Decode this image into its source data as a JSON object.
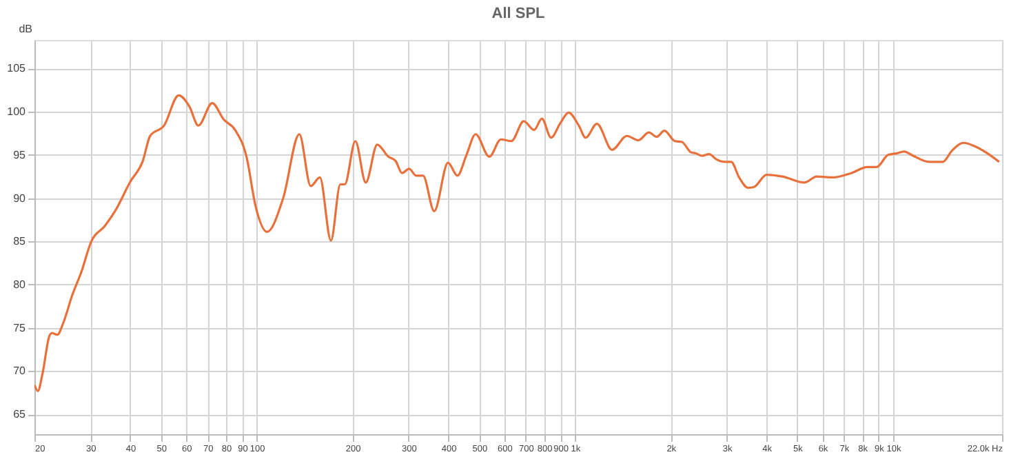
{
  "chart_data": {
    "type": "line",
    "title": "All SPL",
    "ylabel": "dB",
    "x": [
      20,
      20.5,
      21.2,
      22.3,
      22.7,
      23.6,
      24.6,
      26.3,
      28.1,
      30.1,
      33.3,
      36.1,
      40.0,
      43.8,
      46.2,
      51.1,
      56.8,
      61.4,
      65.5,
      72.4,
      78.7,
      85.4,
      92.8,
      99.2,
      107.7,
      121,
      136,
      147.7,
      157.8,
      171,
      183,
      189,
      204,
      220,
      239,
      259,
      273,
      286,
      301,
      317,
      333,
      361,
      399,
      427,
      456,
      487,
      538,
      585,
      631,
      690,
      744,
      787,
      841,
      900,
      955,
      1028,
      1080,
      1172,
      1308,
      1456,
      1582,
      1707,
      1806,
      1910,
      2061,
      2168,
      2317,
      2392,
      2513,
      2642,
      2780,
      2968,
      3097,
      3280,
      3500,
      3656,
      4000,
      4488,
      5260,
      5755,
      6470,
      7380,
      8300,
      8870,
      9640,
      10290,
      10820,
      11560,
      12980,
      14330,
      15310,
      16640,
      18070,
      19950,
      21540
    ],
    "series": [
      {
        "color": "#e8703a",
        "values": [
          68.4,
          67.7,
          69.7,
          74.1,
          74.4,
          74.2,
          75.5,
          78.8,
          81.5,
          84.9,
          86.8,
          88.7,
          91.9,
          94.3,
          97.2,
          98.4,
          101.9,
          100.6,
          98.4,
          101.0,
          99.1,
          97.9,
          94.8,
          89.0,
          86.1,
          90.0,
          97.4,
          91.4,
          92.4,
          85.1,
          91.6,
          91.6,
          96.6,
          91.8,
          96.2,
          94.8,
          94.3,
          92.9,
          93.4,
          92.6,
          92.6,
          88.5,
          94.1,
          92.6,
          95.0,
          97.4,
          94.8,
          96.8,
          96.6,
          98.9,
          97.9,
          99.2,
          97.0,
          98.7,
          99.9,
          98.4,
          97.0,
          98.6,
          95.6,
          97.2,
          96.7,
          97.6,
          97.1,
          97.8,
          96.6,
          96.5,
          95.3,
          95.2,
          94.9,
          95.1,
          94.5,
          94.2,
          94.2,
          92.4,
          91.2,
          91.3,
          92.7,
          92.5,
          91.8,
          92.5,
          92.4,
          92.9,
          93.6,
          93.6,
          95.0,
          95.2,
          95.4,
          94.9,
          94.2,
          94.2,
          95.5,
          96.4,
          96.0,
          95.1,
          94.2
        ]
      }
    ],
    "log": "x",
    "xlim": [
      20,
      22000
    ],
    "xticks": [
      20,
      30,
      40,
      50,
      60,
      70,
      80,
      90,
      100,
      200,
      300,
      400,
      500,
      600,
      700,
      800,
      900,
      {
        "value": 1000,
        "label": "1k"
      },
      {
        "value": 2000,
        "label": "2k"
      },
      {
        "value": 3000,
        "label": "3k"
      },
      {
        "value": 4000,
        "label": "4k"
      },
      {
        "value": 5000,
        "label": "5k"
      },
      {
        "value": 6000,
        "label": "6k"
      },
      {
        "value": 7000,
        "label": "7k"
      },
      {
        "value": 8000,
        "label": "8k"
      },
      {
        "value": 9000,
        "label": "9k"
      },
      {
        "value": 10000,
        "label": "10k"
      },
      {
        "value": 22000,
        "label": "22.0k Hz"
      }
    ],
    "ylim": [
      62.7,
      108.3
    ],
    "yticks": [
      65,
      70,
      75,
      80,
      85,
      90,
      95,
      100,
      105
    ],
    "grid": true
  }
}
